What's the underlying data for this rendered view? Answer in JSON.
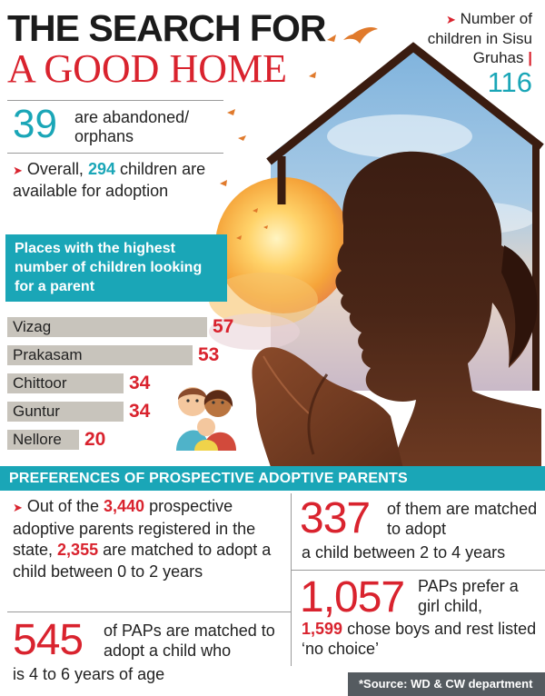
{
  "title": {
    "line1": "THE SEARCH FOR",
    "line2": "A GOOD HOME"
  },
  "sisu": {
    "arrow_glyph": "➤",
    "line1": "Number of",
    "line2": "children in Sisu",
    "line3": "Gruhas",
    "bar": "|",
    "value": "116"
  },
  "abandoned": {
    "value": "39",
    "line1": "are abandoned/",
    "line2": "orphans"
  },
  "overall": {
    "arrow_glyph": "➤",
    "prefix": "Overall,",
    "value": "294",
    "mid": "children",
    "rest": "are available for adoption"
  },
  "places": {
    "heading": "Places with the highest number of children looking for a parent",
    "items": [
      {
        "label": "Vizag",
        "value": "57",
        "fraction": 0.95
      },
      {
        "label": "Prakasam",
        "value": "53",
        "fraction": 0.88
      },
      {
        "label": "Chittoor",
        "value": "34",
        "fraction": 0.55
      },
      {
        "label": "Guntur",
        "value": "34",
        "fraction": 0.55
      },
      {
        "label": "Nellore",
        "value": "20",
        "fraction": 0.34
      }
    ]
  },
  "prefs": {
    "heading": "PREFERENCES OF PROSPECTIVE ADOPTIVE PARENTS",
    "out": {
      "arrow_glyph": "➤",
      "t1": "Out of the",
      "n1": "3,440",
      "t2": "prospective adoptive parents registered in the state,",
      "n2": "2,355",
      "t3": "are matched to adopt a child between 0 to 2 years"
    },
    "b545": {
      "value": "545",
      "text": "of PAPs are matched to adopt a child who",
      "tail": "is 4 to 6 years of age"
    },
    "b337": {
      "value": "337",
      "text": "of them are matched to adopt",
      "tail": "a child between 2 to 4 years"
    },
    "b1057": {
      "value": "1,057",
      "text": "PAPs prefer a girl child,",
      "n": "1,599",
      "tail": "chose boys and rest listed ‘no choice’"
    }
  },
  "source": "*Source: WD & CW department",
  "colors": {
    "accent_teal": "#1aa6b7",
    "accent_red": "#d9232e",
    "bar_gray": "#c8c4bc",
    "source_bg": "#555b60"
  }
}
